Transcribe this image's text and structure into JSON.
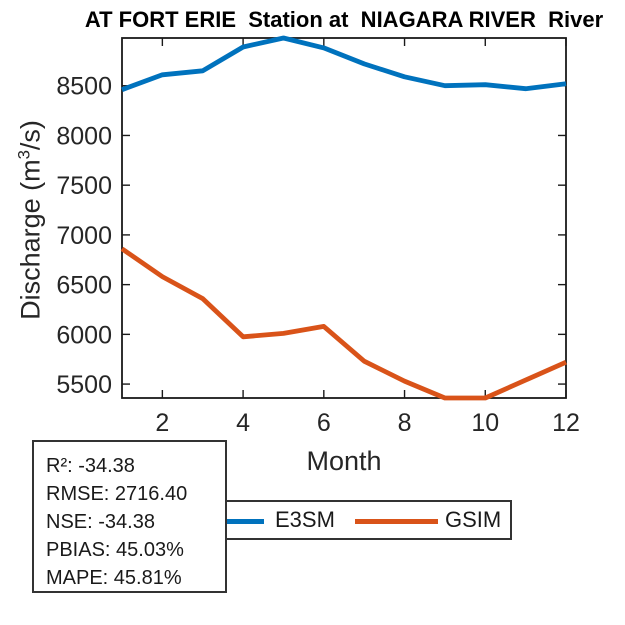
{
  "title": "AT FORT ERIE  Station at  NIAGARA RIVER  River",
  "chart_data": {
    "type": "line",
    "title": "AT FORT ERIE  Station at  NIAGARA RIVER  River",
    "xlabel": "Month",
    "ylabel": "Discharge (m³/s)",
    "x": [
      1,
      2,
      3,
      4,
      5,
      6,
      7,
      8,
      9,
      10,
      11,
      12
    ],
    "series": [
      {
        "name": "E3SM",
        "color": "#0072BD",
        "values": [
          8460,
          8610,
          8650,
          8890,
          8980,
          8880,
          8720,
          8590,
          8500,
          8510,
          8470,
          8520
        ]
      },
      {
        "name": "GSIM",
        "color": "#D95319",
        "values": [
          6860,
          6580,
          6360,
          5975,
          6010,
          6080,
          5730,
          5530,
          5360,
          5360,
          5540,
          5720
        ]
      }
    ],
    "xlim": [
      1,
      12
    ],
    "ylim": [
      5360,
      8980
    ],
    "x_ticks": [
      2,
      4,
      6,
      8,
      10,
      12
    ],
    "y_ticks": [
      5500,
      6000,
      6500,
      7000,
      7500,
      8000,
      8500
    ],
    "grid": false,
    "legend_position": "below-plot-left"
  },
  "axes": {
    "xlabel": "Month",
    "ylabel_base1": "Discharge (m",
    "ylabel_sup": "3",
    "ylabel_base2": "/s)"
  },
  "stats_box": {
    "lines": [
      "R²: -34.38",
      "RMSE: 2716.40",
      "NSE: -34.38",
      "PBIAS: 45.03%",
      "MAPE: 45.81%"
    ]
  },
  "legend": {
    "items": [
      {
        "label": "E3SM",
        "color": "#0072BD"
      },
      {
        "label": "GSIM",
        "color": "#D95319"
      }
    ]
  },
  "colors": {
    "axis": "#1a1a1a",
    "tick_text": "#262626"
  }
}
